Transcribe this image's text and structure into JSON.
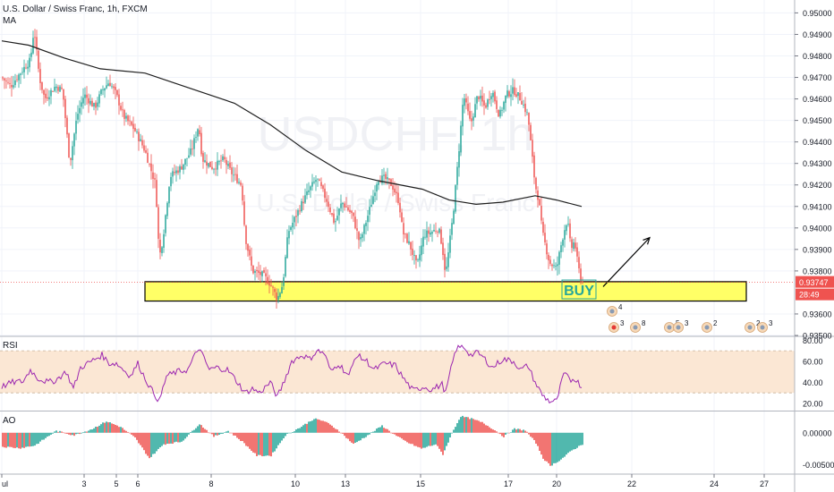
{
  "header": {
    "symbol_line": "U.S. Dollar / Swiss Franc, 1h, FXCM",
    "ma_label": "MA"
  },
  "watermark": {
    "symbol": "USDCHF, 1h",
    "name": "U.S. Dollar / Swiss Franc"
  },
  "colors": {
    "up": "#26a69a",
    "down": "#ef5350",
    "ma": "#1e1e1e",
    "rsi": "#9c27b0",
    "rsi_band": "#fbe7d4",
    "zone_fill": "#ffff66",
    "zone_border": "#000000",
    "price_tag": "#ef5350",
    "buy_text": "#26a69a",
    "grid": "#f0f3fa",
    "axis": "#787b86"
  },
  "chart_data": [
    {
      "type": "candlestick",
      "title": "U.S. Dollar / Swiss Franc, 1h, FXCM",
      "price_axis": {
        "ylim": [
          0.935,
          0.9506
        ],
        "ticks": [
          "0.95000",
          "0.94900",
          "0.94800",
          "0.94700",
          "0.94600",
          "0.94500",
          "0.94400",
          "0.94300",
          "0.94200",
          "0.94100",
          "0.94000",
          "0.93900",
          "0.93800",
          "0.93600",
          "0.93500"
        ]
      },
      "time_axis": {
        "labels": [
          "ul",
          "3",
          "5",
          "6",
          "8",
          "10",
          "13",
          "15",
          "17",
          "20",
          "22",
          "24",
          "27"
        ],
        "label_positions_bars": [
          0,
          46,
          64,
          76,
          117,
          164,
          192,
          234,
          283,
          310,
          352,
          398,
          426
        ]
      },
      "last_price": "0.93747",
      "countdown": "28:49",
      "moving_average": {
        "name": "MA",
        "points": [
          [
            0,
            0.9487
          ],
          [
            15,
            0.9485
          ],
          [
            35,
            0.9479
          ],
          [
            55,
            0.9474
          ],
          [
            80,
            0.9472
          ],
          [
            105,
            0.9465
          ],
          [
            130,
            0.9458
          ],
          [
            150,
            0.9448
          ],
          [
            170,
            0.9436
          ],
          [
            190,
            0.9426
          ],
          [
            210,
            0.9422
          ],
          [
            235,
            0.9418
          ],
          [
            250,
            0.9413
          ],
          [
            265,
            0.9411
          ],
          [
            280,
            0.9412
          ],
          [
            298,
            0.9415
          ],
          [
            310,
            0.9413
          ],
          [
            324,
            0.941
          ]
        ]
      },
      "price_path": [
        [
          0,
          0.947
        ],
        [
          5,
          0.9466
        ],
        [
          12,
          0.9474
        ],
        [
          16,
          0.9478
        ],
        [
          18,
          0.9493
        ],
        [
          21,
          0.947
        ],
        [
          24,
          0.946
        ],
        [
          30,
          0.9466
        ],
        [
          34,
          0.9464
        ],
        [
          38,
          0.943
        ],
        [
          42,
          0.9452
        ],
        [
          46,
          0.9462
        ],
        [
          52,
          0.9456
        ],
        [
          56,
          0.9464
        ],
        [
          60,
          0.9468
        ],
        [
          64,
          0.9462
        ],
        [
          68,
          0.9452
        ],
        [
          74,
          0.9446
        ],
        [
          80,
          0.9436
        ],
        [
          86,
          0.942
        ],
        [
          88,
          0.9386
        ],
        [
          90,
          0.9395
        ],
        [
          94,
          0.9424
        ],
        [
          100,
          0.9428
        ],
        [
          106,
          0.9436
        ],
        [
          110,
          0.9448
        ],
        [
          112,
          0.9432
        ],
        [
          118,
          0.9428
        ],
        [
          124,
          0.9432
        ],
        [
          128,
          0.9426
        ],
        [
          134,
          0.942
        ],
        [
          136,
          0.9396
        ],
        [
          140,
          0.938
        ],
        [
          146,
          0.9378
        ],
        [
          150,
          0.9374
        ],
        [
          154,
          0.9367
        ],
        [
          157,
          0.9374
        ],
        [
          160,
          0.9398
        ],
        [
          164,
          0.9405
        ],
        [
          168,
          0.9412
        ],
        [
          172,
          0.9418
        ],
        [
          176,
          0.9423
        ],
        [
          182,
          0.9412
        ],
        [
          186,
          0.9402
        ],
        [
          190,
          0.9412
        ],
        [
          196,
          0.9406
        ],
        [
          200,
          0.9393
        ],
        [
          206,
          0.941
        ],
        [
          210,
          0.9423
        ],
        [
          214,
          0.9423
        ],
        [
          218,
          0.942
        ],
        [
          222,
          0.9412
        ],
        [
          224,
          0.9398
        ],
        [
          228,
          0.9392
        ],
        [
          232,
          0.9382
        ],
        [
          236,
          0.9397
        ],
        [
          240,
          0.9398
        ],
        [
          244,
          0.94
        ],
        [
          246,
          0.9392
        ],
        [
          248,
          0.9378
        ],
        [
          252,
          0.9405
        ],
        [
          255,
          0.9432
        ],
        [
          258,
          0.9462
        ],
        [
          262,
          0.9448
        ],
        [
          266,
          0.9462
        ],
        [
          270,
          0.9456
        ],
        [
          274,
          0.9464
        ],
        [
          278,
          0.9452
        ],
        [
          282,
          0.9462
        ],
        [
          286,
          0.9464
        ],
        [
          290,
          0.946
        ],
        [
          294,
          0.9452
        ],
        [
          298,
          0.942
        ],
        [
          300,
          0.9413
        ],
        [
          302,
          0.9398
        ],
        [
          306,
          0.9384
        ],
        [
          310,
          0.9381
        ],
        [
          312,
          0.939
        ],
        [
          314,
          0.9398
        ],
        [
          316,
          0.9404
        ],
        [
          318,
          0.939
        ],
        [
          320,
          0.9394
        ],
        [
          322,
          0.9382
        ],
        [
          324,
          0.9375
        ]
      ],
      "annotations": [
        {
          "type": "rectangle",
          "name": "support-zone",
          "x": [
            80,
            416
          ],
          "y": [
            0.9366,
            0.9375
          ]
        },
        {
          "type": "text",
          "text": "BUY",
          "x": 314,
          "y": 0.93712
        },
        {
          "type": "arrow",
          "from": [
            336,
            0.93727
          ],
          "to": [
            362,
            0.93955
          ]
        }
      ],
      "event_badges": [
        {
          "text": "4",
          "bar": 341
        },
        {
          "text": "3",
          "bar": 342
        },
        {
          "text": "8",
          "bar": 354
        },
        {
          "text": "5",
          "bar": 373
        },
        {
          "text": "3",
          "bar": 378
        },
        {
          "text": "2",
          "bar": 394
        },
        {
          "text": "2",
          "bar": 418
        },
        {
          "text": "3",
          "bar": 425
        }
      ]
    },
    {
      "type": "line",
      "title": "RSI",
      "ylim": [
        14,
        82
      ],
      "ticks": [
        "80.00",
        "60.00",
        "40.00",
        "20.00"
      ],
      "band": [
        30,
        70
      ],
      "points": [
        [
          0,
          36
        ],
        [
          6,
          40
        ],
        [
          12,
          41
        ],
        [
          16,
          52
        ],
        [
          20,
          44
        ],
        [
          26,
          40
        ],
        [
          30,
          42
        ],
        [
          36,
          50
        ],
        [
          40,
          34
        ],
        [
          44,
          54
        ],
        [
          50,
          60
        ],
        [
          56,
          66
        ],
        [
          60,
          58
        ],
        [
          64,
          58
        ],
        [
          68,
          52
        ],
        [
          72,
          46
        ],
        [
          76,
          58
        ],
        [
          80,
          44
        ],
        [
          84,
          32
        ],
        [
          88,
          22
        ],
        [
          92,
          46
        ],
        [
          98,
          50
        ],
        [
          104,
          52
        ],
        [
          110,
          73
        ],
        [
          116,
          52
        ],
        [
          120,
          54
        ],
        [
          126,
          52
        ],
        [
          130,
          44
        ],
        [
          136,
          30
        ],
        [
          140,
          34
        ],
        [
          144,
          30
        ],
        [
          150,
          40
        ],
        [
          154,
          26
        ],
        [
          158,
          42
        ],
        [
          162,
          60
        ],
        [
          168,
          66
        ],
        [
          172,
          62
        ],
        [
          176,
          70
        ],
        [
          180,
          68
        ],
        [
          184,
          50
        ],
        [
          188,
          58
        ],
        [
          194,
          46
        ],
        [
          198,
          66
        ],
        [
          204,
          60
        ],
        [
          208,
          52
        ],
        [
          214,
          58
        ],
        [
          220,
          56
        ],
        [
          222,
          50
        ],
        [
          226,
          40
        ],
        [
          230,
          32
        ],
        [
          236,
          36
        ],
        [
          240,
          33
        ],
        [
          246,
          38
        ],
        [
          248,
          30
        ],
        [
          252,
          60
        ],
        [
          254,
          72
        ],
        [
          258,
          74
        ],
        [
          262,
          66
        ],
        [
          266,
          68
        ],
        [
          270,
          62
        ],
        [
          274,
          54
        ],
        [
          280,
          62
        ],
        [
          286,
          60
        ],
        [
          290,
          52
        ],
        [
          294,
          56
        ],
        [
          298,
          40
        ],
        [
          302,
          28
        ],
        [
          306,
          22
        ],
        [
          310,
          22
        ],
        [
          314,
          48
        ],
        [
          318,
          42
        ],
        [
          320,
          44
        ],
        [
          324,
          36
        ]
      ]
    },
    {
      "type": "bar",
      "title": "AO",
      "ylim": [
        -0.0065,
        0.0032
      ],
      "ticks": [
        "0.00000",
        "-0.00500"
      ],
      "points": [
        [
          0,
          -0.0022
        ],
        [
          10,
          -0.0024
        ],
        [
          18,
          -0.002
        ],
        [
          30,
          0.0003
        ],
        [
          40,
          -0.0004
        ],
        [
          50,
          0.0006
        ],
        [
          58,
          0.0018
        ],
        [
          66,
          0.0009
        ],
        [
          74,
          -0.0008
        ],
        [
          82,
          -0.004
        ],
        [
          90,
          -0.0018
        ],
        [
          100,
          -0.0014
        ],
        [
          110,
          0.0014
        ],
        [
          118,
          -0.0006
        ],
        [
          126,
          0.0003
        ],
        [
          134,
          -0.0014
        ],
        [
          142,
          -0.0036
        ],
        [
          150,
          -0.0036
        ],
        [
          158,
          -0.0004
        ],
        [
          166,
          0.0008
        ],
        [
          174,
          0.0022
        ],
        [
          180,
          0.0018
        ],
        [
          188,
          0.0003
        ],
        [
          196,
          -0.0018
        ],
        [
          204,
          -0.0004
        ],
        [
          212,
          0.0011
        ],
        [
          220,
          -0.0005
        ],
        [
          226,
          -0.0015
        ],
        [
          234,
          -0.0025
        ],
        [
          242,
          -0.0018
        ],
        [
          246,
          -0.0034
        ],
        [
          252,
          0.0005
        ],
        [
          256,
          0.0026
        ],
        [
          262,
          0.0022
        ],
        [
          268,
          0.0016
        ],
        [
          274,
          0.0006
        ],
        [
          280,
          -0.0006
        ],
        [
          286,
          0.0006
        ],
        [
          292,
          0.0004
        ],
        [
          298,
          -0.0016
        ],
        [
          302,
          -0.004
        ],
        [
          306,
          -0.0052
        ],
        [
          312,
          -0.0042
        ],
        [
          318,
          -0.0028
        ],
        [
          324,
          -0.0018
        ]
      ]
    }
  ]
}
